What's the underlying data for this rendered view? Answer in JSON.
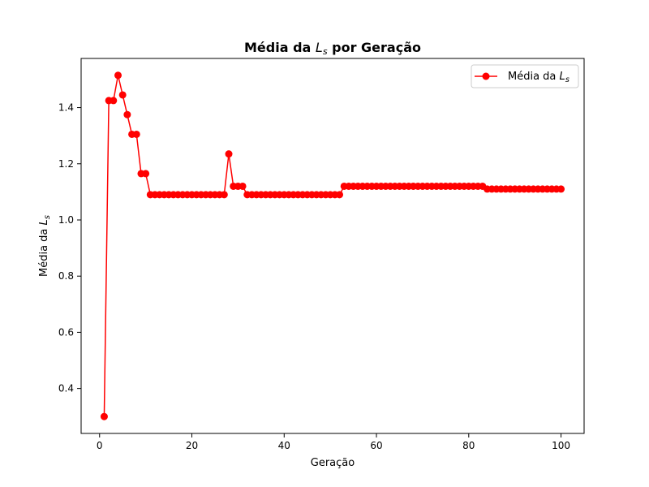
{
  "chart_data": {
    "type": "line",
    "title_main": "Média da ",
    "title_var": "L",
    "title_sub": "s",
    "title_tail": " por Geração",
    "xlabel": "Geração",
    "ylabel_main": "Média da ",
    "ylabel_var": "L",
    "ylabel_sub": "s",
    "xlim": [
      -4,
      105
    ],
    "ylim": [
      0.24,
      1.575
    ],
    "xticks": [
      0,
      20,
      40,
      60,
      80,
      100
    ],
    "yticks": [
      0.4,
      0.6,
      0.8,
      1.0,
      1.2,
      1.4
    ],
    "ytick_labels": [
      "0.4",
      "0.6",
      "0.8",
      "1.0",
      "1.2",
      "1.4"
    ],
    "legend_position": "top-right",
    "color": "#ff0000",
    "series": [
      {
        "name_main": "Média da ",
        "name_var": "L",
        "name_sub": "s",
        "x": [
          1,
          2,
          3,
          4,
          5,
          6,
          7,
          8,
          9,
          10,
          11,
          12,
          13,
          14,
          15,
          16,
          17,
          18,
          19,
          20,
          21,
          22,
          23,
          24,
          25,
          26,
          27,
          28,
          29,
          30,
          31,
          32,
          33,
          34,
          35,
          36,
          37,
          38,
          39,
          40,
          41,
          42,
          43,
          44,
          45,
          46,
          47,
          48,
          49,
          50,
          51,
          52,
          53,
          54,
          55,
          56,
          57,
          58,
          59,
          60,
          61,
          62,
          63,
          64,
          65,
          66,
          67,
          68,
          69,
          70,
          71,
          72,
          73,
          74,
          75,
          76,
          77,
          78,
          79,
          80,
          81,
          82,
          83,
          84,
          85,
          86,
          87,
          88,
          89,
          90,
          91,
          92,
          93,
          94,
          95,
          96,
          97,
          98,
          99,
          100
        ],
        "y": [
          0.3,
          1.425,
          1.425,
          1.515,
          1.445,
          1.375,
          1.305,
          1.305,
          1.165,
          1.165,
          1.09,
          1.09,
          1.09,
          1.09,
          1.09,
          1.09,
          1.09,
          1.09,
          1.09,
          1.09,
          1.09,
          1.09,
          1.09,
          1.09,
          1.09,
          1.09,
          1.09,
          1.235,
          1.12,
          1.12,
          1.12,
          1.09,
          1.09,
          1.09,
          1.09,
          1.09,
          1.09,
          1.09,
          1.09,
          1.09,
          1.09,
          1.09,
          1.09,
          1.09,
          1.09,
          1.09,
          1.09,
          1.09,
          1.09,
          1.09,
          1.09,
          1.09,
          1.12,
          1.12,
          1.12,
          1.12,
          1.12,
          1.12,
          1.12,
          1.12,
          1.12,
          1.12,
          1.12,
          1.12,
          1.12,
          1.12,
          1.12,
          1.12,
          1.12,
          1.12,
          1.12,
          1.12,
          1.12,
          1.12,
          1.12,
          1.12,
          1.12,
          1.12,
          1.12,
          1.12,
          1.12,
          1.12,
          1.12,
          1.11,
          1.11,
          1.11,
          1.11,
          1.11,
          1.11,
          1.11,
          1.11,
          1.11,
          1.11,
          1.11,
          1.11,
          1.11,
          1.11,
          1.11,
          1.11,
          1.11
        ]
      }
    ]
  }
}
